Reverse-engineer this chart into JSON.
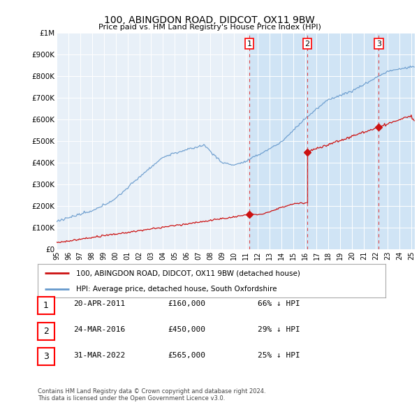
{
  "title": "100, ABINGDON ROAD, DIDCOT, OX11 9BW",
  "subtitle": "Price paid vs. HM Land Registry's House Price Index (HPI)",
  "background_color": "#ffffff",
  "plot_background_color": "#e8f0f8",
  "plot_shade_color": "#d0e4f5",
  "ylim": [
    0,
    1000000
  ],
  "yticks": [
    0,
    100000,
    200000,
    300000,
    400000,
    500000,
    600000,
    700000,
    800000,
    900000,
    1000000
  ],
  "ytick_labels": [
    "£0",
    "£100K",
    "£200K",
    "£300K",
    "£400K",
    "£500K",
    "£600K",
    "£700K",
    "£800K",
    "£900K",
    "£1M"
  ],
  "hpi_color": "#6699cc",
  "sale_color": "#cc1111",
  "vline_color": "#dd3333",
  "transactions": [
    {
      "label": "1",
      "date": 2011.3,
      "price": 160000
    },
    {
      "label": "2",
      "date": 2016.2,
      "price": 450000
    },
    {
      "label": "3",
      "date": 2022.25,
      "price": 565000
    }
  ],
  "transaction_info": [
    {
      "num": "1",
      "date": "20-APR-2011",
      "price": "£160,000",
      "pct": "66% ↓ HPI"
    },
    {
      "num": "2",
      "date": "24-MAR-2016",
      "price": "£450,000",
      "pct": "29% ↓ HPI"
    },
    {
      "num": "3",
      "date": "31-MAR-2022",
      "price": "£565,000",
      "pct": "25% ↓ HPI"
    }
  ],
  "legend_entries": [
    "100, ABINGDON ROAD, DIDCOT, OX11 9BW (detached house)",
    "HPI: Average price, detached house, South Oxfordshire"
  ],
  "footer": "Contains HM Land Registry data © Crown copyright and database right 2024.\nThis data is licensed under the Open Government Licence v3.0.",
  "xlim_start": 1995.0,
  "xlim_end": 2025.3
}
